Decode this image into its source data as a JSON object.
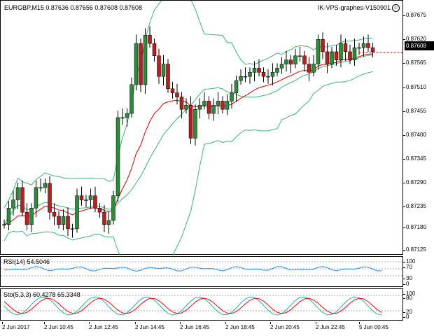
{
  "header": {
    "symbol_line": "EURGBP,M15  0.87636 0.87656 0.87608 0.87608",
    "ea_label": "IK-VPS-graphes-V150901",
    "ea_icon": "smiley-icon"
  },
  "main_axis_ticks": [
    "0.87675",
    "0.87620",
    "0.87565",
    "0.87510",
    "0.87455",
    "0.87400",
    "0.87345",
    "0.87290",
    "0.87235",
    "0.87180",
    "0.87125"
  ],
  "current_price": "0.87608",
  "rsi": {
    "label": "RSI(14) 54.5046",
    "levels": [
      "100",
      "70",
      "30",
      "0"
    ],
    "color": "#1e90ff"
  },
  "sto": {
    "label": "Sto(5,3,3) 60.4278 65.3348",
    "levels": [
      "100",
      "80",
      "20",
      "0"
    ],
    "main_color": "#20b2aa",
    "signal_color": "#ff0000"
  },
  "time_labels": [
    "2 Jun 2017",
    "2 Jun 10:45",
    "2 Jun 12:45",
    "2 Jun 14:45",
    "2 Jun 16:45",
    "2 Jun 18:45",
    "2 Jun 20:45",
    "2 Jun 22:45",
    "5 Jun 00:45"
  ],
  "colors": {
    "bull": "#2e8b3a",
    "bear": "#b22222",
    "band": "#3cb371",
    "ma": "#d40000"
  },
  "chart_data": {
    "type": "candlestick",
    "ylim": [
      0.87125,
      0.877
    ],
    "closes": [
      0.8719,
      0.8723,
      0.8725,
      0.8728,
      0.8722,
      0.8719,
      0.8723,
      0.8728,
      0.8728,
      0.8729,
      0.8722,
      0.8721,
      0.8719,
      0.8721,
      0.8718,
      0.8718,
      0.8726,
      0.8725,
      0.8725,
      0.8726,
      0.8723,
      0.8722,
      0.8719,
      0.872,
      0.8726,
      0.8745,
      0.8745,
      0.8746,
      0.8753,
      0.8763,
      0.8753,
      0.8765,
      0.8763,
      0.876,
      0.8755,
      0.8758,
      0.8752,
      0.8751,
      0.875,
      0.8747,
      0.8748,
      0.874,
      0.8747,
      0.8748,
      0.8749,
      0.8746,
      0.8748,
      0.8749,
      0.8747,
      0.8749,
      0.8751,
      0.8754,
      0.8755,
      0.8755,
      0.8756,
      0.8757,
      0.8756,
      0.8755,
      0.8755,
      0.8756,
      0.8757,
      0.8758,
      0.8759,
      0.8758,
      0.876,
      0.876,
      0.8758,
      0.8756,
      0.8758,
      0.8764,
      0.8761,
      0.8758,
      0.8761,
      0.8759,
      0.8763,
      0.8761,
      0.8759,
      0.8762,
      0.8762,
      0.8763,
      0.8762,
      0.8761
    ]
  }
}
